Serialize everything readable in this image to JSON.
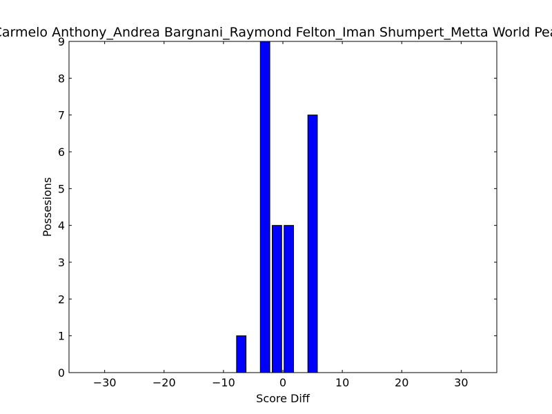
{
  "chart_data": {
    "type": "bar",
    "title": "Carmelo Anthony_Andrea Bargnani_Raymond Felton_Iman Shumpert_Metta World Peace",
    "xlabel": "Score Diff",
    "ylabel": "Possesions",
    "xlim": [
      -36,
      36
    ],
    "ylim": [
      0,
      9
    ],
    "xticks": [
      -30,
      -20,
      -10,
      0,
      10,
      20,
      30
    ],
    "yticks": [
      0,
      1,
      2,
      3,
      4,
      5,
      6,
      7,
      8,
      9
    ],
    "x": [
      -7,
      -3,
      -1,
      1,
      5
    ],
    "values": [
      1,
      9,
      4,
      4,
      7
    ],
    "bar_width": 1.6,
    "bar_color": "#0000ff",
    "grid": false
  }
}
